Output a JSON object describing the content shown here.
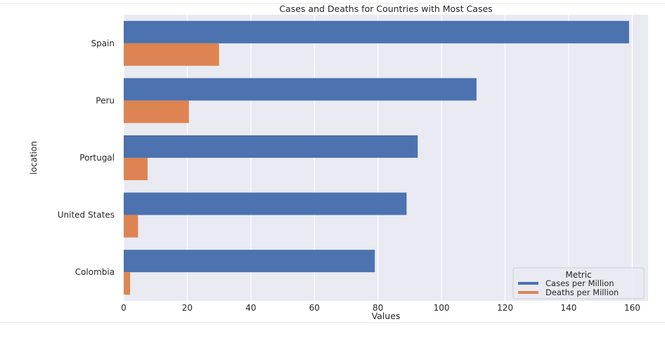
{
  "chart_data": {
    "type": "bar",
    "orientation": "horizontal",
    "title": "Cases and Deaths for Countries with Most Cases",
    "xlabel": "Values",
    "ylabel": "location",
    "xlim": [
      0,
      165
    ],
    "x_ticks": [
      0,
      20,
      40,
      60,
      80,
      100,
      120,
      140,
      160
    ],
    "grid": true,
    "categories": [
      "Spain",
      "Peru",
      "Portugal",
      "United States",
      "Colombia"
    ],
    "series": [
      {
        "name": "Cases per Million",
        "color": "#4c72b0",
        "values": [
          159,
          111,
          92.5,
          89,
          79
        ]
      },
      {
        "name": "Deaths per Million",
        "color": "#dd8452",
        "values": [
          30,
          20.5,
          7.5,
          4.5,
          2
        ]
      }
    ],
    "legend": {
      "title": "Metric",
      "position": "lower-right"
    },
    "colors": {
      "plot_background": "#eaeaf2",
      "grid": "#ffffff",
      "text": "#262626"
    }
  }
}
